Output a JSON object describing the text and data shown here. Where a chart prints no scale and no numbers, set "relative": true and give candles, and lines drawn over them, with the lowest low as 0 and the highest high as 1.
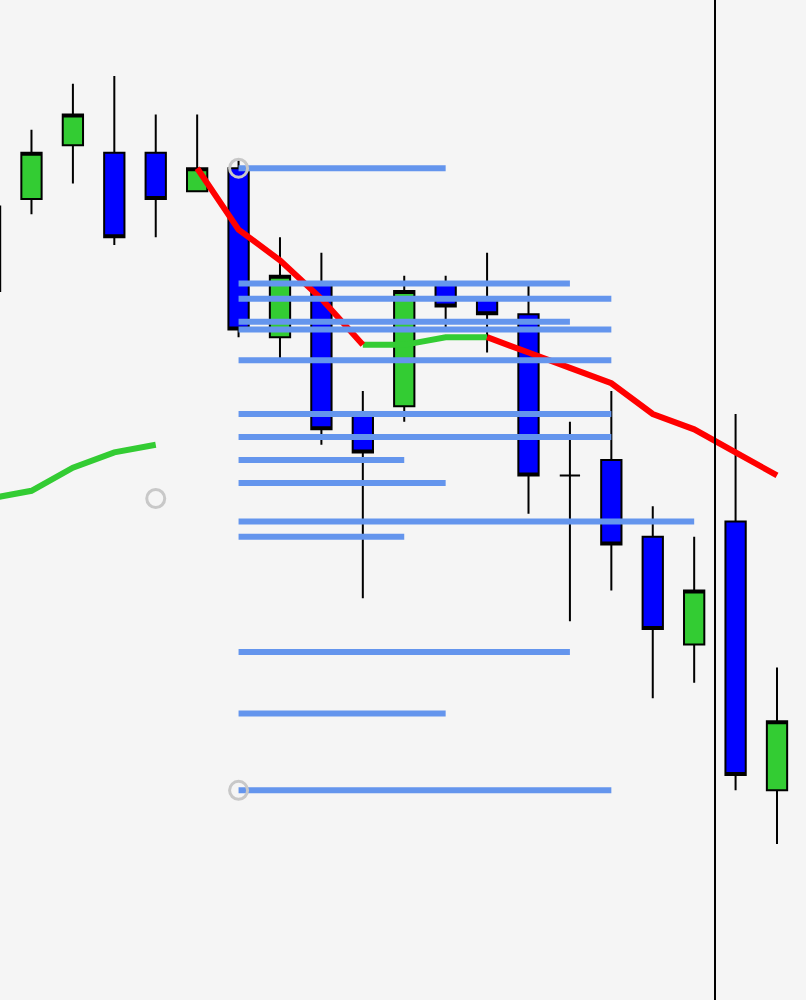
{
  "chart_data": {
    "type": "candlestick",
    "relative": true,
    "categories": [
      null,
      null,
      null,
      null,
      null,
      null,
      null,
      null,
      null,
      null,
      null,
      null,
      null,
      null,
      null,
      null,
      null,
      null,
      null,
      null
    ],
    "ohlc": [
      [
        0.72,
        0.84,
        0.7,
        0.83
      ],
      [
        0.84,
        0.93,
        0.82,
        0.9
      ],
      [
        0.91,
        0.99,
        0.86,
        0.95
      ],
      [
        0.9,
        1.0,
        0.78,
        0.79
      ],
      [
        0.9,
        0.95,
        0.79,
        0.84
      ],
      [
        0.85,
        0.95,
        0.85,
        0.88
      ],
      [
        0.88,
        0.89,
        0.66,
        0.67
      ],
      [
        0.66,
        0.79,
        0.63,
        0.74
      ],
      [
        0.73,
        0.77,
        0.52,
        0.54
      ],
      [
        0.56,
        0.59,
        0.32,
        0.51
      ],
      [
        0.57,
        0.74,
        0.55,
        0.72
      ],
      [
        0.73,
        0.74,
        0.67,
        0.7
      ],
      [
        0.71,
        0.77,
        0.64,
        0.69
      ],
      [
        0.69,
        0.73,
        0.43,
        0.48
      ],
      [
        0.48,
        0.55,
        0.29,
        0.48
      ],
      [
        0.5,
        0.59,
        0.33,
        0.39
      ],
      [
        0.4,
        0.44,
        0.19,
        0.28
      ],
      [
        0.26,
        0.4,
        0.21,
        0.33
      ],
      [
        0.42,
        0.56,
        0.07,
        0.09
      ],
      [
        0.07,
        0.23,
        0.0,
        0.16
      ]
    ],
    "colors": [
      "#33cc33",
      "#33cc33",
      "#33cc33",
      "#0000ff",
      "#0000ff",
      "#33cc33",
      "#0000ff",
      "#33cc33",
      "#0000ff",
      "#0000ff",
      "#33cc33",
      "#0000ff",
      "#0000ff",
      "#0000ff",
      "#000000",
      "#0000ff",
      "#0000ff",
      "#33cc33",
      "#0000ff",
      "#33cc33"
    ],
    "series": [
      {
        "type": "line",
        "color": "#33cc33",
        "values": [
          0.45,
          0.46,
          0.49,
          0.51,
          0.52,
          null,
          null,
          null,
          null,
          0.65,
          0.65,
          0.66,
          0.66,
          null,
          null,
          null,
          null,
          null,
          null,
          null
        ]
      },
      {
        "type": "line",
        "color": "#ff0000",
        "values": [
          null,
          null,
          null,
          null,
          null,
          0.88,
          0.8,
          0.76,
          0.71,
          0.65,
          null,
          null,
          0.66,
          0.64,
          0.62,
          0.6,
          0.56,
          0.54,
          0.51,
          0.48
        ]
      },
      {
        "type": "line",
        "color": "#6495ed",
        "values": [
          null,
          null,
          null,
          null,
          null,
          null,
          0.88,
          0.88,
          0.88,
          0.88,
          0.88,
          0.88,
          null,
          null,
          null,
          null,
          null,
          null,
          null,
          null
        ]
      },
      {
        "type": "line",
        "color": "#6495ed",
        "values": [
          null,
          null,
          null,
          null,
          null,
          null,
          0.73,
          0.73,
          0.73,
          0.73,
          0.73,
          0.73,
          0.73,
          0.73,
          0.73,
          null,
          null,
          null,
          null,
          null
        ]
      },
      {
        "type": "line",
        "color": "#6495ed",
        "values": [
          null,
          null,
          null,
          null,
          null,
          null,
          0.71,
          0.71,
          0.71,
          0.71,
          0.71,
          0.71,
          0.71,
          0.71,
          0.71,
          0.71,
          null,
          null,
          null,
          null
        ]
      },
      {
        "type": "line",
        "color": "#6495ed",
        "values": [
          null,
          null,
          null,
          null,
          null,
          null,
          0.68,
          0.68,
          0.68,
          0.68,
          0.68,
          0.68,
          0.68,
          0.68,
          0.68,
          null,
          null,
          null,
          null,
          null
        ]
      },
      {
        "type": "line",
        "color": "#6495ed",
        "values": [
          null,
          null,
          null,
          null,
          null,
          null,
          0.67,
          0.67,
          0.67,
          0.67,
          0.67,
          0.67,
          0.67,
          0.67,
          0.67,
          0.67,
          null,
          null,
          null,
          null
        ]
      },
      {
        "type": "line",
        "color": "#6495ed",
        "values": [
          null,
          null,
          null,
          null,
          null,
          null,
          0.63,
          0.63,
          0.63,
          0.63,
          0.63,
          0.63,
          0.63,
          0.63,
          0.63,
          0.63,
          null,
          null,
          null,
          null
        ]
      },
      {
        "type": "line",
        "color": "#6495ed",
        "values": [
          null,
          null,
          null,
          null,
          null,
          null,
          0.56,
          0.56,
          0.56,
          0.56,
          0.56,
          0.56,
          0.56,
          0.56,
          0.56,
          0.56,
          null,
          null,
          null,
          null
        ]
      },
      {
        "type": "line",
        "color": "#6495ed",
        "values": [
          null,
          null,
          null,
          null,
          null,
          null,
          0.53,
          0.53,
          0.53,
          0.53,
          0.53,
          0.53,
          0.53,
          0.53,
          0.53,
          0.53,
          null,
          null,
          null,
          null
        ]
      },
      {
        "type": "line",
        "color": "#6495ed",
        "values": [
          null,
          null,
          null,
          null,
          null,
          null,
          0.5,
          0.5,
          0.5,
          0.5,
          0.5,
          null,
          null,
          null,
          null,
          null,
          null,
          null,
          null,
          null
        ]
      },
      {
        "type": "line",
        "color": "#6495ed",
        "values": [
          null,
          null,
          null,
          null,
          null,
          null,
          0.47,
          0.47,
          0.47,
          0.47,
          0.47,
          0.47,
          null,
          null,
          null,
          null,
          null,
          null,
          null,
          null
        ]
      },
      {
        "type": "line",
        "color": "#6495ed",
        "values": [
          null,
          null,
          null,
          null,
          null,
          null,
          0.42,
          0.42,
          0.42,
          0.42,
          0.42,
          0.42,
          0.42,
          0.42,
          0.42,
          0.42,
          0.42,
          0.42,
          null,
          null
        ]
      },
      {
        "type": "line",
        "color": "#6495ed",
        "values": [
          null,
          null,
          null,
          null,
          null,
          null,
          0.4,
          0.4,
          0.4,
          0.4,
          0.4,
          null,
          null,
          null,
          null,
          null,
          null,
          null,
          null,
          null
        ]
      },
      {
        "type": "line",
        "color": "#6495ed",
        "values": [
          null,
          null,
          null,
          null,
          null,
          null,
          0.25,
          0.25,
          0.25,
          0.25,
          0.25,
          0.25,
          0.25,
          0.25,
          0.25,
          null,
          null,
          null,
          null,
          null
        ]
      },
      {
        "type": "line",
        "color": "#6495ed",
        "values": [
          null,
          null,
          null,
          null,
          null,
          null,
          0.17,
          0.17,
          0.17,
          0.17,
          0.17,
          0.17,
          null,
          null,
          null,
          null,
          null,
          null,
          null,
          null
        ]
      },
      {
        "type": "line",
        "color": "#6495ed",
        "values": [
          null,
          null,
          null,
          null,
          null,
          null,
          0.07,
          0.07,
          0.07,
          0.07,
          0.07,
          0.07,
          0.07,
          0.07,
          0.07,
          0.07,
          null,
          null,
          null,
          null
        ]
      },
      {
        "type": "scatter",
        "color": "#c8c8c8",
        "marker": "circle",
        "values": [
          null,
          null,
          null,
          null,
          0.45,
          null,
          0.88,
          null,
          null,
          null,
          null,
          null,
          null,
          null,
          null,
          null,
          null,
          null,
          null,
          null
        ]
      },
      {
        "type": "scatter",
        "color": "#c8c8c8",
        "marker": "circle",
        "values": [
          null,
          null,
          null,
          null,
          null,
          null,
          0.07,
          null,
          null,
          null,
          null,
          null,
          null,
          null,
          null,
          null,
          null,
          null,
          null,
          null
        ]
      }
    ],
    "grid": false
  }
}
